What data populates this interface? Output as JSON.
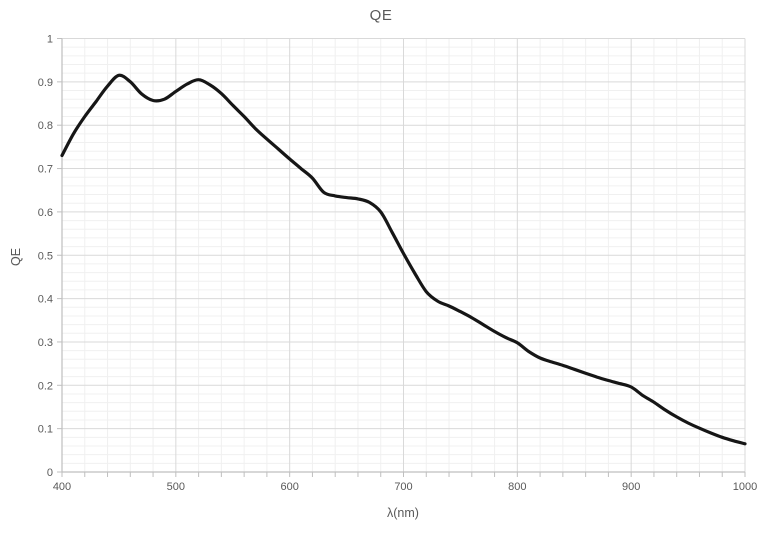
{
  "chart_data": {
    "type": "line",
    "title": "QE",
    "xlabel": "λ(nm)",
    "ylabel": "QE",
    "xlim": [
      400,
      1000
    ],
    "ylim": [
      0,
      1
    ],
    "x_major_step": 100,
    "x_minor_step": 20,
    "y_major_step": 0.1,
    "y_minor_step": 0.02,
    "x_tick_labels": [
      "400",
      "500",
      "600",
      "700",
      "800",
      "900",
      "1000"
    ],
    "y_tick_labels": [
      "0",
      "0.1",
      "0.2",
      "0.3",
      "0.4",
      "0.5",
      "0.6",
      "0.7",
      "0.8",
      "0.9",
      "1"
    ],
    "grid": true,
    "legend_position": "none",
    "series": [
      {
        "name": "QE",
        "color": "#161616",
        "x": [
          400,
          410,
          420,
          430,
          440,
          450,
          460,
          470,
          480,
          490,
          500,
          510,
          520,
          530,
          540,
          550,
          560,
          570,
          580,
          590,
          600,
          610,
          620,
          630,
          640,
          650,
          660,
          670,
          680,
          690,
          700,
          710,
          720,
          730,
          740,
          750,
          760,
          770,
          780,
          790,
          800,
          810,
          820,
          830,
          840,
          850,
          860,
          870,
          880,
          890,
          900,
          910,
          920,
          930,
          940,
          950,
          960,
          970,
          980,
          990,
          1000
        ],
        "y": [
          0.73,
          0.78,
          0.82,
          0.855,
          0.89,
          0.915,
          0.9,
          0.872,
          0.857,
          0.86,
          0.878,
          0.895,
          0.905,
          0.893,
          0.873,
          0.846,
          0.82,
          0.792,
          0.768,
          0.745,
          0.722,
          0.7,
          0.678,
          0.645,
          0.637,
          0.633,
          0.63,
          0.622,
          0.6,
          0.553,
          0.504,
          0.458,
          0.416,
          0.394,
          0.383,
          0.37,
          0.356,
          0.34,
          0.324,
          0.31,
          0.298,
          0.278,
          0.263,
          0.254,
          0.246,
          0.237,
          0.228,
          0.219,
          0.211,
          0.204,
          0.196,
          0.177,
          0.161,
          0.143,
          0.127,
          0.113,
          0.101,
          0.09,
          0.08,
          0.072,
          0.065
        ]
      }
    ]
  },
  "colors": {
    "background": "#ffffff",
    "minor_gridline": "#f0f0f0",
    "major_gridline": "#d9d9d9",
    "axis_line": "#bfbfbf",
    "tick_mark": "#bfbfbf",
    "text": "#595959",
    "curve": "#161616"
  }
}
